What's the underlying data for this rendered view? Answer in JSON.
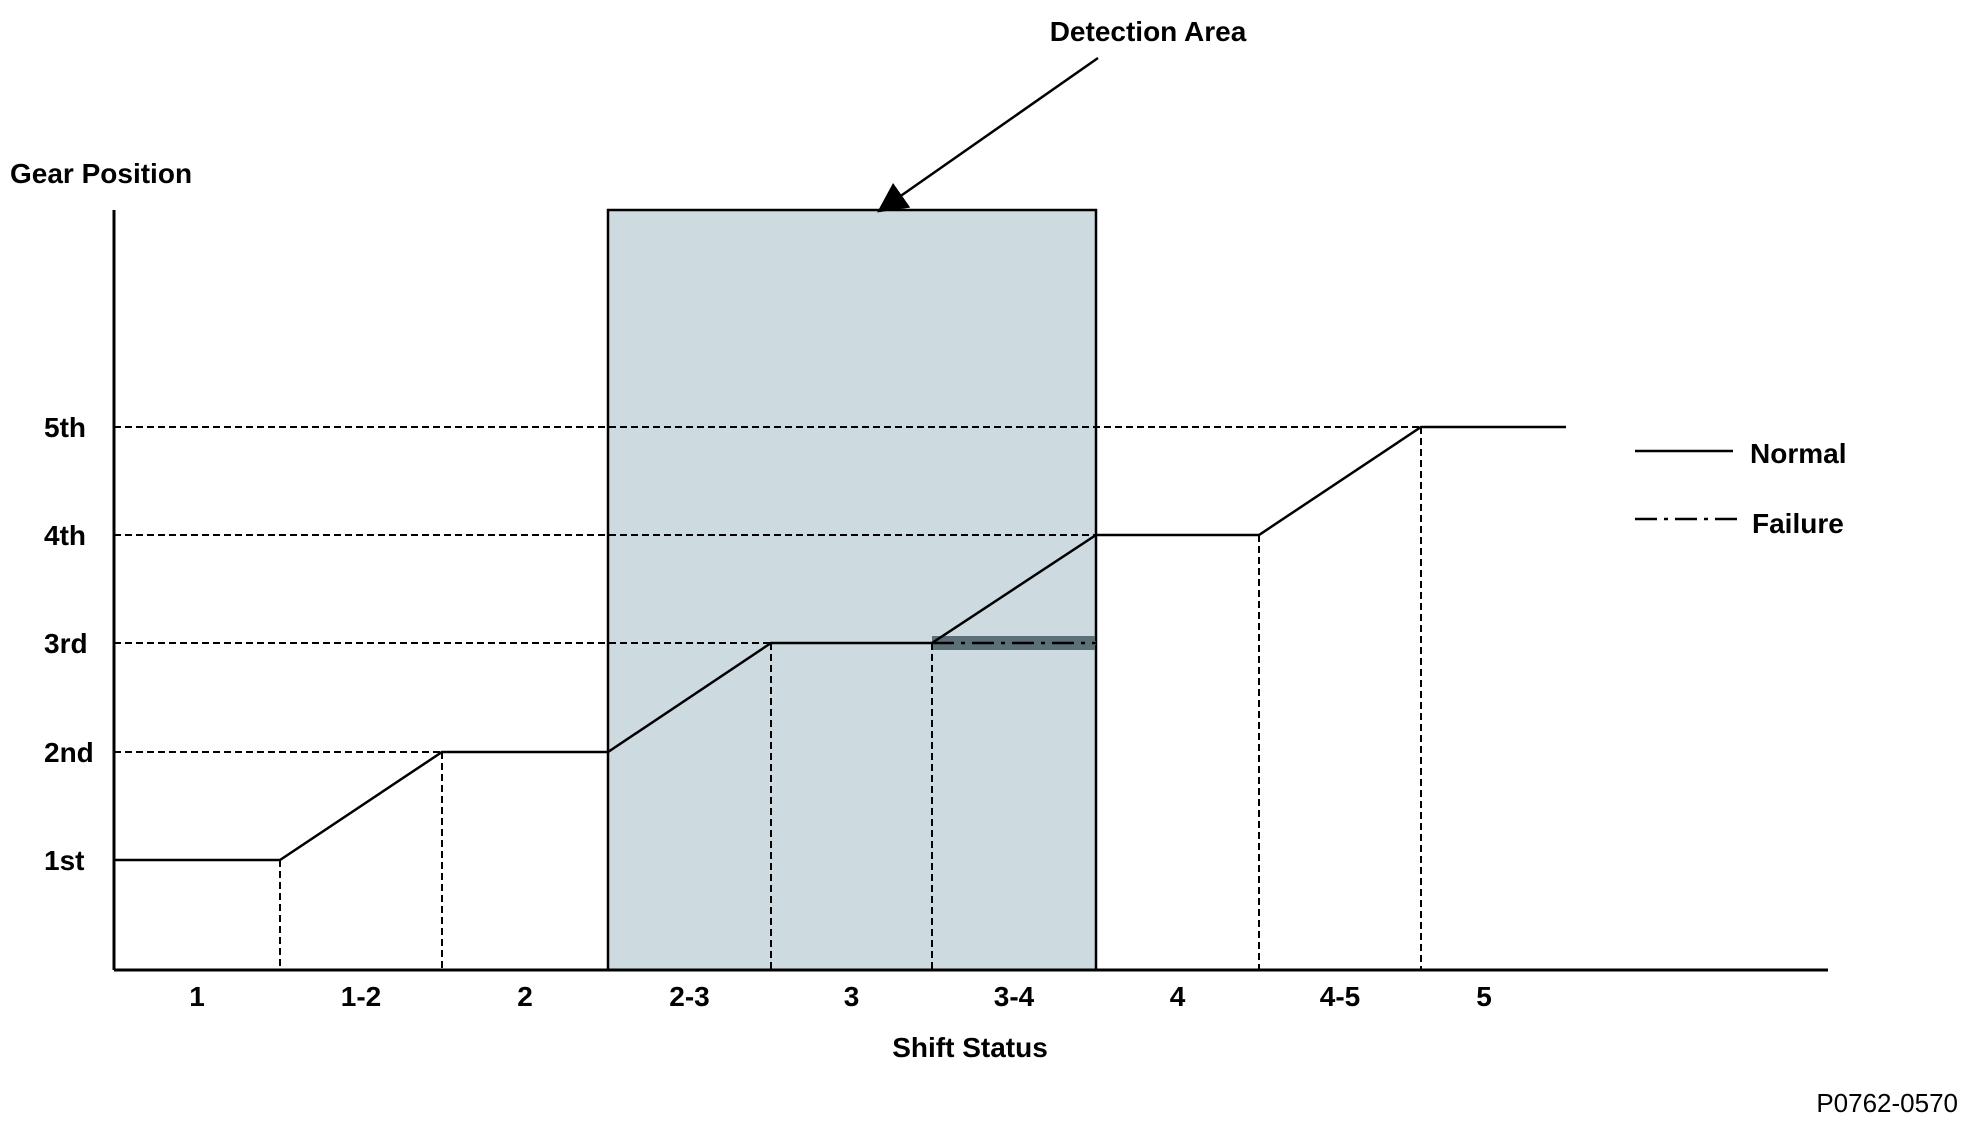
{
  "chart_data": {
    "type": "line",
    "title": "",
    "ylabel": "Gear Position",
    "xlabel": "Shift Status",
    "annotation": "Detection Area",
    "figure_id": "P0762-0570",
    "y_levels": [
      "1st",
      "2nd",
      "3rd",
      "4th",
      "5th"
    ],
    "x_categories": [
      "1",
      "1-2",
      "2",
      "2-3",
      "3",
      "3-4",
      "4",
      "4-5",
      "5"
    ],
    "detection_area": {
      "start_category": "2-3",
      "end_category": "3-4"
    },
    "legend": {
      "position": "right",
      "normal": "Normal",
      "failure": "Failure"
    },
    "series": [
      {
        "name": "Normal",
        "style": "solid",
        "points": [
          [
            "1",
            "1st"
          ],
          [
            "1-2",
            "1st"
          ],
          [
            "2",
            "2nd"
          ],
          [
            "2-3",
            "2nd"
          ],
          [
            "3",
            "3rd"
          ],
          [
            "3-4",
            "3rd"
          ],
          [
            "4",
            "4th"
          ],
          [
            "4-5",
            "4th"
          ],
          [
            "5",
            "5th"
          ]
        ]
      },
      {
        "name": "Failure",
        "style": "dash-dot",
        "points": [
          [
            "3-4",
            "3rd"
          ],
          [
            "4",
            "3rd"
          ]
        ]
      }
    ],
    "colors": {
      "detection_fill": "#cddbe1",
      "failure_band": "#5b7077",
      "lines": "#000000"
    }
  }
}
